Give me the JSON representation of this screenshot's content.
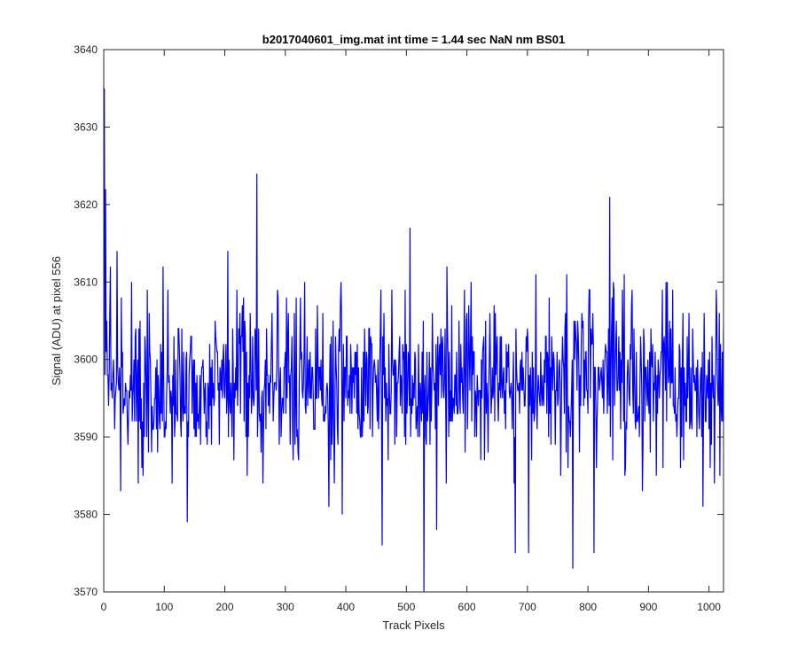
{
  "chart_data": {
    "type": "line",
    "title": "b2017040601_img.mat int time = 1.44 sec  NaN nm BS01",
    "xlabel": "Track Pixels",
    "ylabel": "Signal (ADU) at pixel 556",
    "xlim": [
      0,
      1024
    ],
    "ylim": [
      3570,
      3640
    ],
    "x_ticks": [
      0,
      100,
      200,
      300,
      400,
      500,
      600,
      700,
      800,
      900,
      1000
    ],
    "y_ticks": [
      3570,
      3580,
      3590,
      3600,
      3610,
      3620,
      3630,
      3640
    ],
    "grid": false,
    "legend": "none",
    "series": [
      {
        "color": "#0000ff",
        "x_start": 1,
        "x_step": 1,
        "n_points": 1024,
        "mean": 3597,
        "noise_std": 5.2,
        "peaks": [
          {
            "x": 1,
            "y": 3635
          },
          {
            "x": 3,
            "y": 3622
          },
          {
            "x": 6,
            "y": 3598
          },
          {
            "x": 11,
            "y": 3612
          },
          {
            "x": 22,
            "y": 3614
          },
          {
            "x": 28,
            "y": 3583
          },
          {
            "x": 46,
            "y": 3610
          },
          {
            "x": 65,
            "y": 3585
          },
          {
            "x": 72,
            "y": 3609
          },
          {
            "x": 98,
            "y": 3612
          },
          {
            "x": 138,
            "y": 3579
          },
          {
            "x": 205,
            "y": 3614
          },
          {
            "x": 253,
            "y": 3624
          },
          {
            "x": 263,
            "y": 3584
          },
          {
            "x": 372,
            "y": 3581
          },
          {
            "x": 394,
            "y": 3580
          },
          {
            "x": 460,
            "y": 3576
          },
          {
            "x": 506,
            "y": 3617
          },
          {
            "x": 529,
            "y": 3570
          },
          {
            "x": 550,
            "y": 3578
          },
          {
            "x": 567,
            "y": 3612
          },
          {
            "x": 680,
            "y": 3575
          },
          {
            "x": 702,
            "y": 3575
          },
          {
            "x": 714,
            "y": 3611
          },
          {
            "x": 765,
            "y": 3611
          },
          {
            "x": 775,
            "y": 3573
          },
          {
            "x": 810,
            "y": 3575
          },
          {
            "x": 836,
            "y": 3621
          },
          {
            "x": 860,
            "y": 3611
          },
          {
            "x": 890,
            "y": 3583
          },
          {
            "x": 990,
            "y": 3581
          },
          {
            "x": 1012,
            "y": 3609
          },
          {
            "x": 1018,
            "y": 3585
          }
        ]
      }
    ]
  }
}
